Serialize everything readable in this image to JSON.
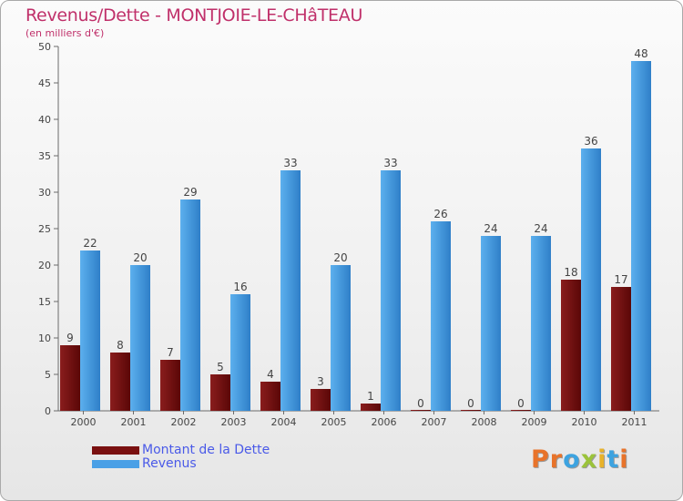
{
  "header": {
    "title": "Revenus/Dette - MONTJOIE-LE-CHâTEAU",
    "subtitle": "(en milliers d'€)"
  },
  "legend": {
    "items": [
      {
        "label": "Montant de la Dette",
        "color": "#7a1010"
      },
      {
        "label": "Revenus",
        "color": "#4aa0e6"
      }
    ]
  },
  "brand": {
    "letters": [
      "P",
      "r",
      "o",
      "x",
      "i",
      "t",
      "i"
    ],
    "colors": [
      "#e8732a",
      "#e8732a",
      "#3da3e0",
      "#9bc33a",
      "#e8b22a",
      "#3da3e0",
      "#e8732a"
    ]
  },
  "chart_data": {
    "type": "bar",
    "categories": [
      "2000",
      "2001",
      "2002",
      "2003",
      "2004",
      "2005",
      "2006",
      "2007",
      "2008",
      "2009",
      "2010",
      "2011"
    ],
    "series": [
      {
        "name": "Montant de la Dette",
        "values": [
          9,
          8,
          7,
          5,
          4,
          3,
          1,
          0,
          0,
          0,
          18,
          17
        ],
        "color": "#7a1010"
      },
      {
        "name": "Revenus",
        "values": [
          22,
          20,
          29,
          16,
          33,
          20,
          33,
          26,
          24,
          24,
          36,
          48
        ],
        "color": "#4aa0e6"
      }
    ],
    "ylim": [
      0,
      50
    ],
    "yticks": [
      0,
      5,
      10,
      15,
      20,
      25,
      30,
      35,
      40,
      45,
      50
    ],
    "grid": false,
    "legend_position": "bottom-left"
  }
}
